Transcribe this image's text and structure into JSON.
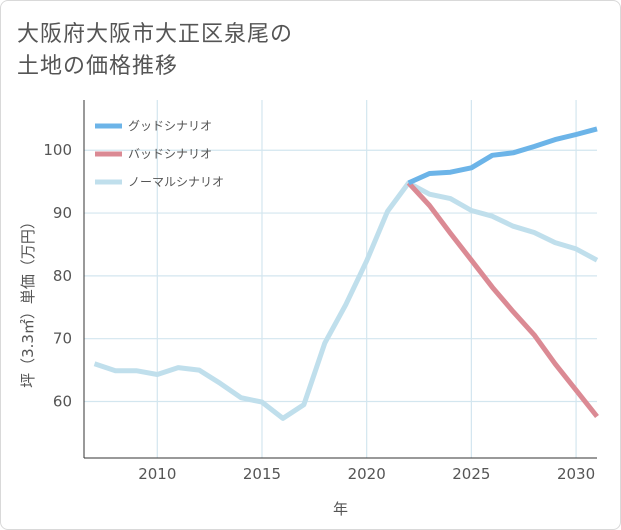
{
  "title_lines": [
    "大阪府大阪市大正区泉尾の",
    "土地の価格推移"
  ],
  "chart_data": {
    "type": "line",
    "xlabel": "年",
    "ylabel": "坪（3.3㎡）単価（万円）",
    "xlim": [
      2006.5,
      2031
    ],
    "ylim": [
      51,
      108
    ],
    "xticks": [
      2010,
      2015,
      2020,
      2025,
      2030
    ],
    "yticks": [
      60,
      70,
      80,
      90,
      100
    ],
    "grid": true,
    "legend_position": "top-left",
    "series": [
      {
        "name": "グッドシナリオ",
        "color": "#6cb4e8",
        "x": [
          2022,
          2023,
          2024,
          2025,
          2026,
          2027,
          2028,
          2029,
          2030,
          2031
        ],
        "y": [
          94.8,
          96.3,
          96.5,
          97.2,
          99.2,
          99.6,
          100.6,
          101.7,
          102.5,
          103.4
        ]
      },
      {
        "name": "バッドシナリオ",
        "color": "#db8a94",
        "x": [
          2022,
          2023,
          2024,
          2025,
          2026,
          2027,
          2028,
          2029,
          2030,
          2031
        ],
        "y": [
          94.8,
          91.2,
          86.8,
          82.5,
          78.2,
          74.3,
          70.6,
          66.0,
          61.8,
          57.6
        ]
      },
      {
        "name": "ノーマルシナリオ",
        "color": "#c0dfec",
        "x": [
          2007,
          2008,
          2009,
          2010,
          2011,
          2012,
          2013,
          2014,
          2015,
          2016,
          2017,
          2018,
          2019,
          2020,
          2021,
          2022,
          2023,
          2024,
          2025,
          2026,
          2027,
          2028,
          2029,
          2030,
          2031
        ],
        "y": [
          66.0,
          64.9,
          64.9,
          64.3,
          65.4,
          65.0,
          62.9,
          60.6,
          59.9,
          57.3,
          59.5,
          69.3,
          75.4,
          82.4,
          90.3,
          94.8,
          93.0,
          92.3,
          90.4,
          89.5,
          87.9,
          86.9,
          85.3,
          84.3,
          82.5
        ]
      }
    ]
  }
}
